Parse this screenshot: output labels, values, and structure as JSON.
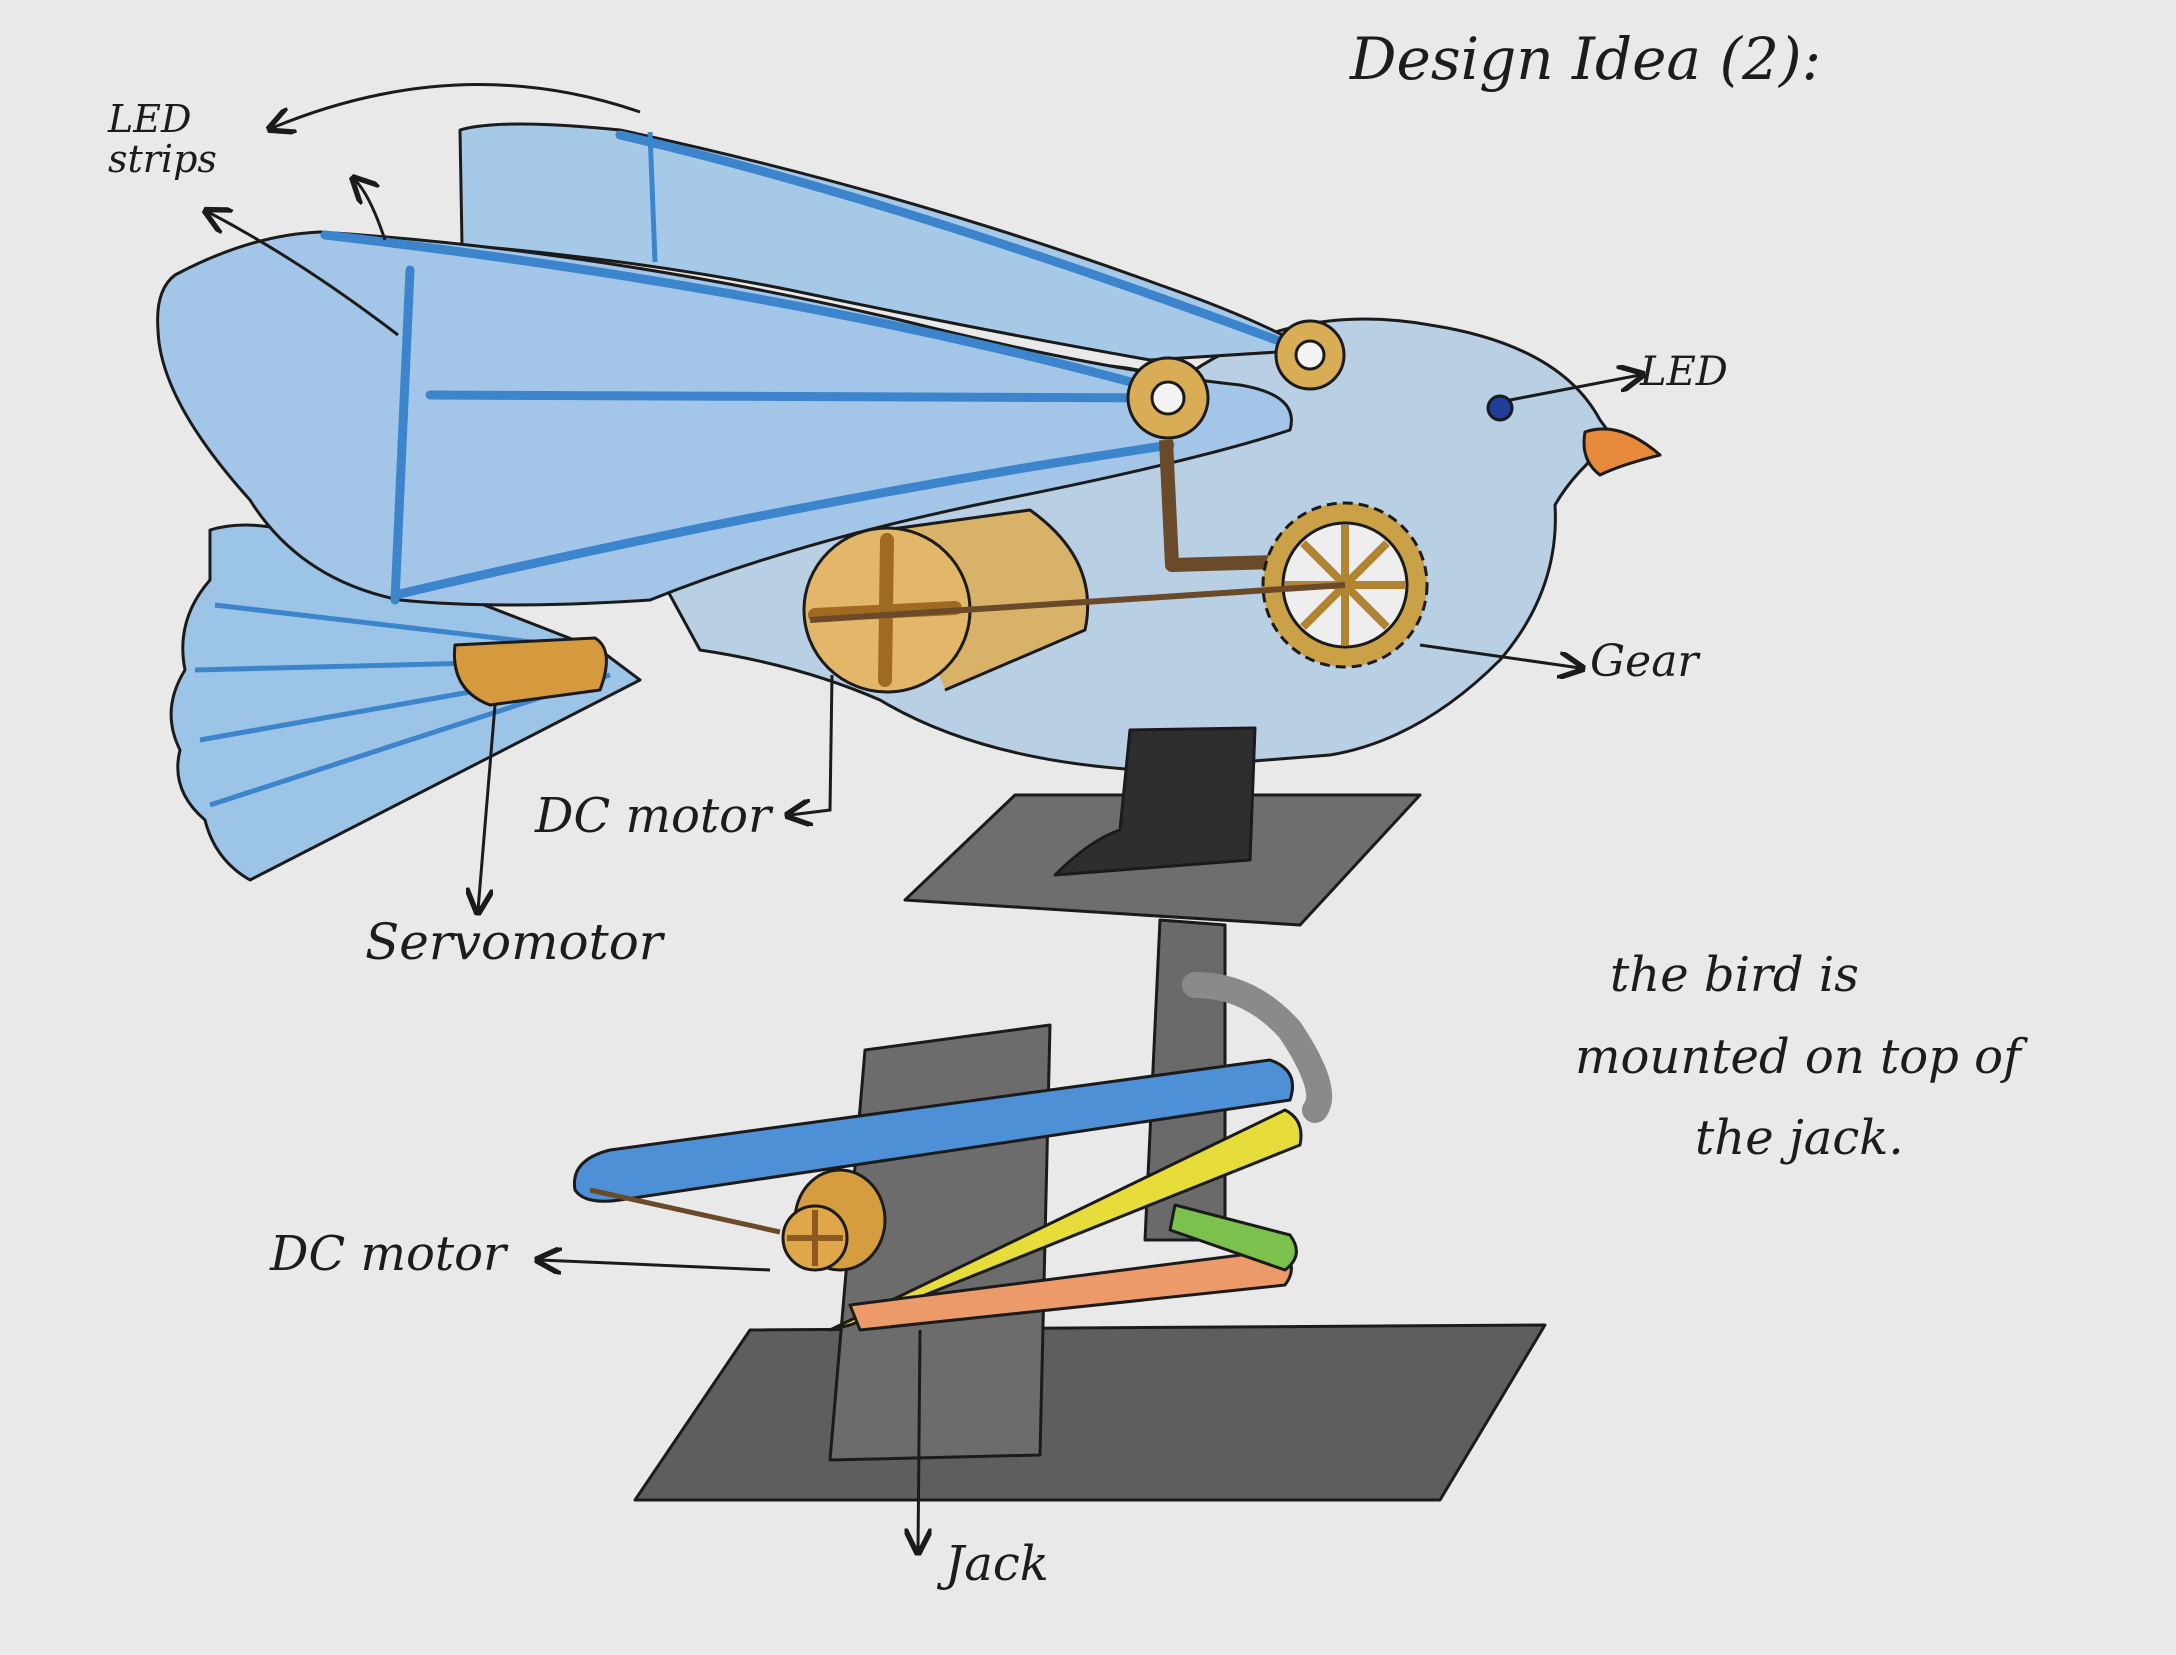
{
  "title": "Design Idea (2):",
  "labels": {
    "led_strips_line1": "LED",
    "led_strips_line2": "strips",
    "led": "LED",
    "gear": "Gear",
    "dc_motor_bird": "DC motor",
    "servomotor": "Servomotor",
    "dc_motor_jack": "DC motor",
    "jack": "Jack"
  },
  "note": {
    "line1": "the bird is",
    "line2": "mounted on top of",
    "line3": "the jack."
  },
  "colors": {
    "paper": "#e9e9e9",
    "bird_body": "#a9c8e4",
    "led_strip": "#3c85cc",
    "motor": "#d7a64c",
    "beak": "#e88a3c",
    "jack_metal": "#6f6f6f",
    "base_plate": "#5e5e5e",
    "yellow_arm": "#e6dc3a",
    "orange_arm": "#ec9a6a",
    "green_arm": "#7cc04e"
  }
}
